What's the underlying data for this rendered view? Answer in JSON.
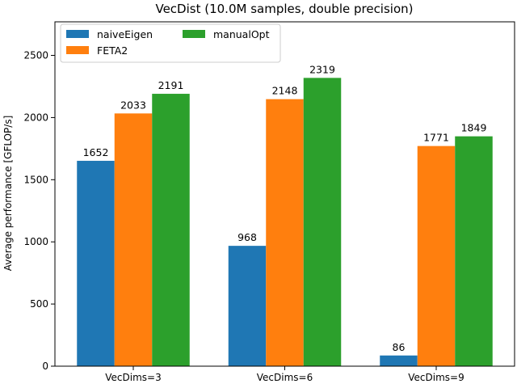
{
  "chart_data": {
    "type": "bar",
    "title": "VecDist (10.0M samples, double precision)",
    "xlabel": "",
    "ylabel": "Average performance [GFLOP/s]",
    "categories": [
      "VecDims=3",
      "VecDims=6",
      "VecDims=9"
    ],
    "series": [
      {
        "name": "naiveEigen",
        "color": "#1f77b4",
        "values": [
          1652,
          968,
          86
        ]
      },
      {
        "name": "FETA2",
        "color": "#ff7f0e",
        "values": [
          2033,
          2148,
          1771
        ]
      },
      {
        "name": "manualOpt",
        "color": "#2ca02c",
        "values": [
          2191,
          2319,
          1849
        ]
      }
    ],
    "ylim": [
      0,
      2770
    ],
    "yticks": [
      0,
      500,
      1000,
      1500,
      2000,
      2500
    ],
    "grid": false,
    "legend_position": "upper-left",
    "legend_columns": 2
  }
}
